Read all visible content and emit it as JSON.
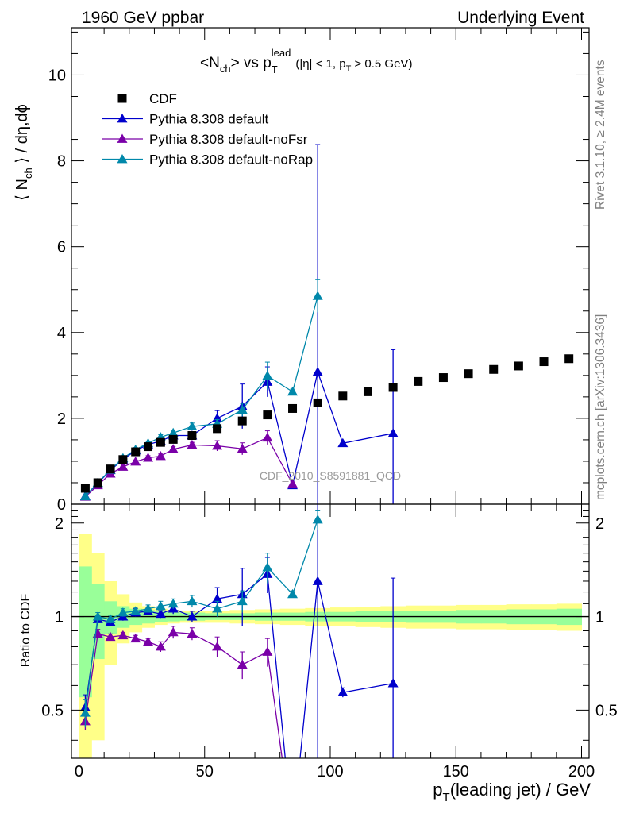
{
  "header": {
    "left": "1960 GeV ppbar",
    "right": "Underlying Event"
  },
  "plot_title": {
    "main": "<N",
    "main_sub": "ch",
    "mid": "> vs p",
    "pt_sup": "lead",
    "pt_sub": "T",
    "cut_a": "(|η| < 1, p",
    "cut_sub": "T",
    "cut_b": " > 0.5 GeV)"
  },
  "watermark": "CDF_2010_S8591881_QCD",
  "side_labels": {
    "rivet": "Rivet 3.1.10, ≥ 2.4M events",
    "mcplots": "mcplots.cern.ch [arXiv:1306.3436]"
  },
  "colors": {
    "cdf": "#000000",
    "default": "#0000cc",
    "noFsr": "#7a00a8",
    "noRap": "#0088aa",
    "band_inner": "#99ff99",
    "band_outer": "#ffff88"
  },
  "chart_data": [
    {
      "type": "scatter",
      "panel": "main",
      "title": "",
      "xlabel": "",
      "ylabel_parts": [
        "⟨ N",
        "ch",
        " ⟩ / dη,dϕ"
      ],
      "xlim": [
        -3,
        203
      ],
      "ylim": [
        0,
        11.1
      ],
      "yticks": [
        0,
        2,
        4,
        6,
        8,
        10
      ],
      "legend": {
        "placement": "top-left",
        "entries": [
          "CDF",
          "Pythia 8.308 default",
          "Pythia 8.308 default-noFsr",
          "Pythia 8.308 default-noRap"
        ]
      },
      "series": [
        {
          "name": "CDF",
          "style": "marker",
          "x": [
            2.5,
            7.5,
            12.5,
            17.5,
            22.5,
            27.5,
            32.5,
            37.5,
            45,
            55,
            65,
            75,
            85,
            95,
            105,
            115,
            125,
            135,
            145,
            155,
            165,
            175,
            185,
            195
          ],
          "y": [
            0.37,
            0.5,
            0.82,
            1.04,
            1.22,
            1.34,
            1.44,
            1.51,
            1.6,
            1.76,
            1.94,
            2.08,
            2.23,
            2.36,
            2.52,
            2.62,
            2.72,
            2.86,
            2.95,
            3.04,
            3.14,
            3.22,
            3.32,
            3.39
          ]
        },
        {
          "name": "Pythia 8.308 default",
          "style": "line",
          "x": [
            2.5,
            7.5,
            12.5,
            17.5,
            22.5,
            27.5,
            32.5,
            37.5,
            45,
            55,
            65,
            75,
            85,
            95,
            105,
            125
          ],
          "y": [
            0.19,
            0.49,
            0.79,
            1.04,
            1.25,
            1.39,
            1.47,
            1.6,
            1.6,
            2.0,
            2.28,
            2.85,
            0.44,
            3.08,
            1.42,
            1.65
          ],
          "err": [
            0.02,
            0.03,
            0.04,
            0.04,
            0.05,
            0.05,
            0.06,
            0.08,
            0.08,
            0.18,
            0.52,
            0.35,
            0.05,
            5.3,
            0.05,
            1.95
          ]
        },
        {
          "name": "Pythia 8.308 default-noFsr",
          "style": "line",
          "x": [
            2.5,
            7.5,
            12.5,
            17.5,
            22.5,
            27.5,
            32.5,
            37.5,
            45,
            55,
            65,
            75,
            85
          ],
          "y": [
            0.17,
            0.44,
            0.71,
            0.87,
            0.99,
            1.08,
            1.12,
            1.28,
            1.38,
            1.36,
            1.29,
            1.55,
            0.47
          ],
          "err": [
            0.02,
            0.03,
            0.03,
            0.04,
            0.04,
            0.05,
            0.05,
            0.06,
            0.06,
            0.12,
            0.14,
            0.16,
            0.05
          ]
        },
        {
          "name": "Pythia 8.308 default-noRap",
          "style": "line",
          "x": [
            2.5,
            7.5,
            12.5,
            17.5,
            22.5,
            27.5,
            32.5,
            37.5,
            45,
            55,
            65,
            75,
            85,
            95
          ],
          "y": [
            0.18,
            0.5,
            0.8,
            1.07,
            1.27,
            1.42,
            1.56,
            1.66,
            1.81,
            1.87,
            2.2,
            2.99,
            2.62,
            4.85
          ],
          "err": [
            0.02,
            0.03,
            0.04,
            0.04,
            0.05,
            0.05,
            0.06,
            0.07,
            0.08,
            0.1,
            0.15,
            0.32,
            0.06,
            0.38
          ]
        }
      ]
    },
    {
      "type": "line",
      "panel": "ratio",
      "title": "",
      "xlabel": "p",
      "xlabel_sub": "T",
      "xlabel_rest": "(leading jet) / GeV",
      "ylabel": "Ratio to CDF",
      "xlim": [
        -3,
        203
      ],
      "ylim": [
        0.35,
        2.3
      ],
      "ylog": true,
      "xticks": [
        0,
        50,
        100,
        150,
        200
      ],
      "yticks": [
        0.5,
        1,
        2
      ],
      "bands": {
        "edges": [
          0,
          5,
          10,
          15,
          20,
          25,
          30,
          35,
          40,
          50,
          60,
          70,
          80,
          90,
          100,
          110,
          120,
          130,
          140,
          150,
          160,
          170,
          180,
          190,
          200
        ],
        "inner_half": [
          0.45,
          0.27,
          0.12,
          0.08,
          0.06,
          0.05,
          0.04,
          0.035,
          0.03,
          0.025,
          0.025,
          0.03,
          0.03,
          0.035,
          0.035,
          0.04,
          0.04,
          0.045,
          0.045,
          0.05,
          0.05,
          0.055,
          0.055,
          0.06
        ],
        "outer_half": [
          0.85,
          0.6,
          0.3,
          0.18,
          0.11,
          0.08,
          0.06,
          0.05,
          0.045,
          0.045,
          0.05,
          0.055,
          0.06,
          0.065,
          0.07,
          0.075,
          0.08,
          0.085,
          0.085,
          0.09,
          0.09,
          0.095,
          0.095,
          0.1
        ]
      },
      "series": [
        {
          "name": "Pythia 8.308 default",
          "x": [
            2.5,
            7.5,
            12.5,
            17.5,
            22.5,
            27.5,
            32.5,
            37.5,
            45,
            55,
            65,
            75,
            85,
            95,
            105,
            125
          ],
          "y": [
            0.51,
            0.98,
            0.96,
            1.0,
            1.03,
            1.04,
            1.02,
            1.06,
            1.0,
            1.14,
            1.18,
            1.37,
            0.2,
            1.3,
            0.57,
            0.61
          ],
          "err": [
            0.05,
            0.03,
            0.03,
            0.03,
            0.03,
            0.03,
            0.03,
            0.04,
            0.04,
            0.1,
            0.25,
            0.18,
            0.02,
            2.5,
            0.02,
            0.72
          ]
        },
        {
          "name": "Pythia 8.308 default-noFsr",
          "x": [
            2.5,
            7.5,
            12.5,
            17.5,
            22.5,
            27.5,
            32.5,
            37.5,
            45,
            55,
            65,
            75,
            85
          ],
          "y": [
            0.46,
            0.88,
            0.86,
            0.87,
            0.85,
            0.83,
            0.8,
            0.89,
            0.88,
            0.8,
            0.7,
            0.77,
            0.2
          ],
          "err": [
            0.03,
            0.03,
            0.02,
            0.02,
            0.02,
            0.02,
            0.03,
            0.04,
            0.04,
            0.06,
            0.07,
            0.08,
            0.02
          ]
        },
        {
          "name": "Pythia 8.308 default-noRap",
          "x": [
            2.5,
            7.5,
            12.5,
            17.5,
            22.5,
            27.5,
            32.5,
            37.5,
            45,
            55,
            65,
            75,
            85,
            95
          ],
          "y": [
            0.49,
            1.0,
            0.98,
            1.03,
            1.04,
            1.06,
            1.08,
            1.1,
            1.12,
            1.06,
            1.12,
            1.44,
            1.18,
            2.05
          ],
          "err": [
            0.05,
            0.03,
            0.03,
            0.03,
            0.03,
            0.03,
            0.04,
            0.04,
            0.05,
            0.06,
            0.09,
            0.16,
            0.03,
            0.15
          ]
        }
      ]
    }
  ]
}
